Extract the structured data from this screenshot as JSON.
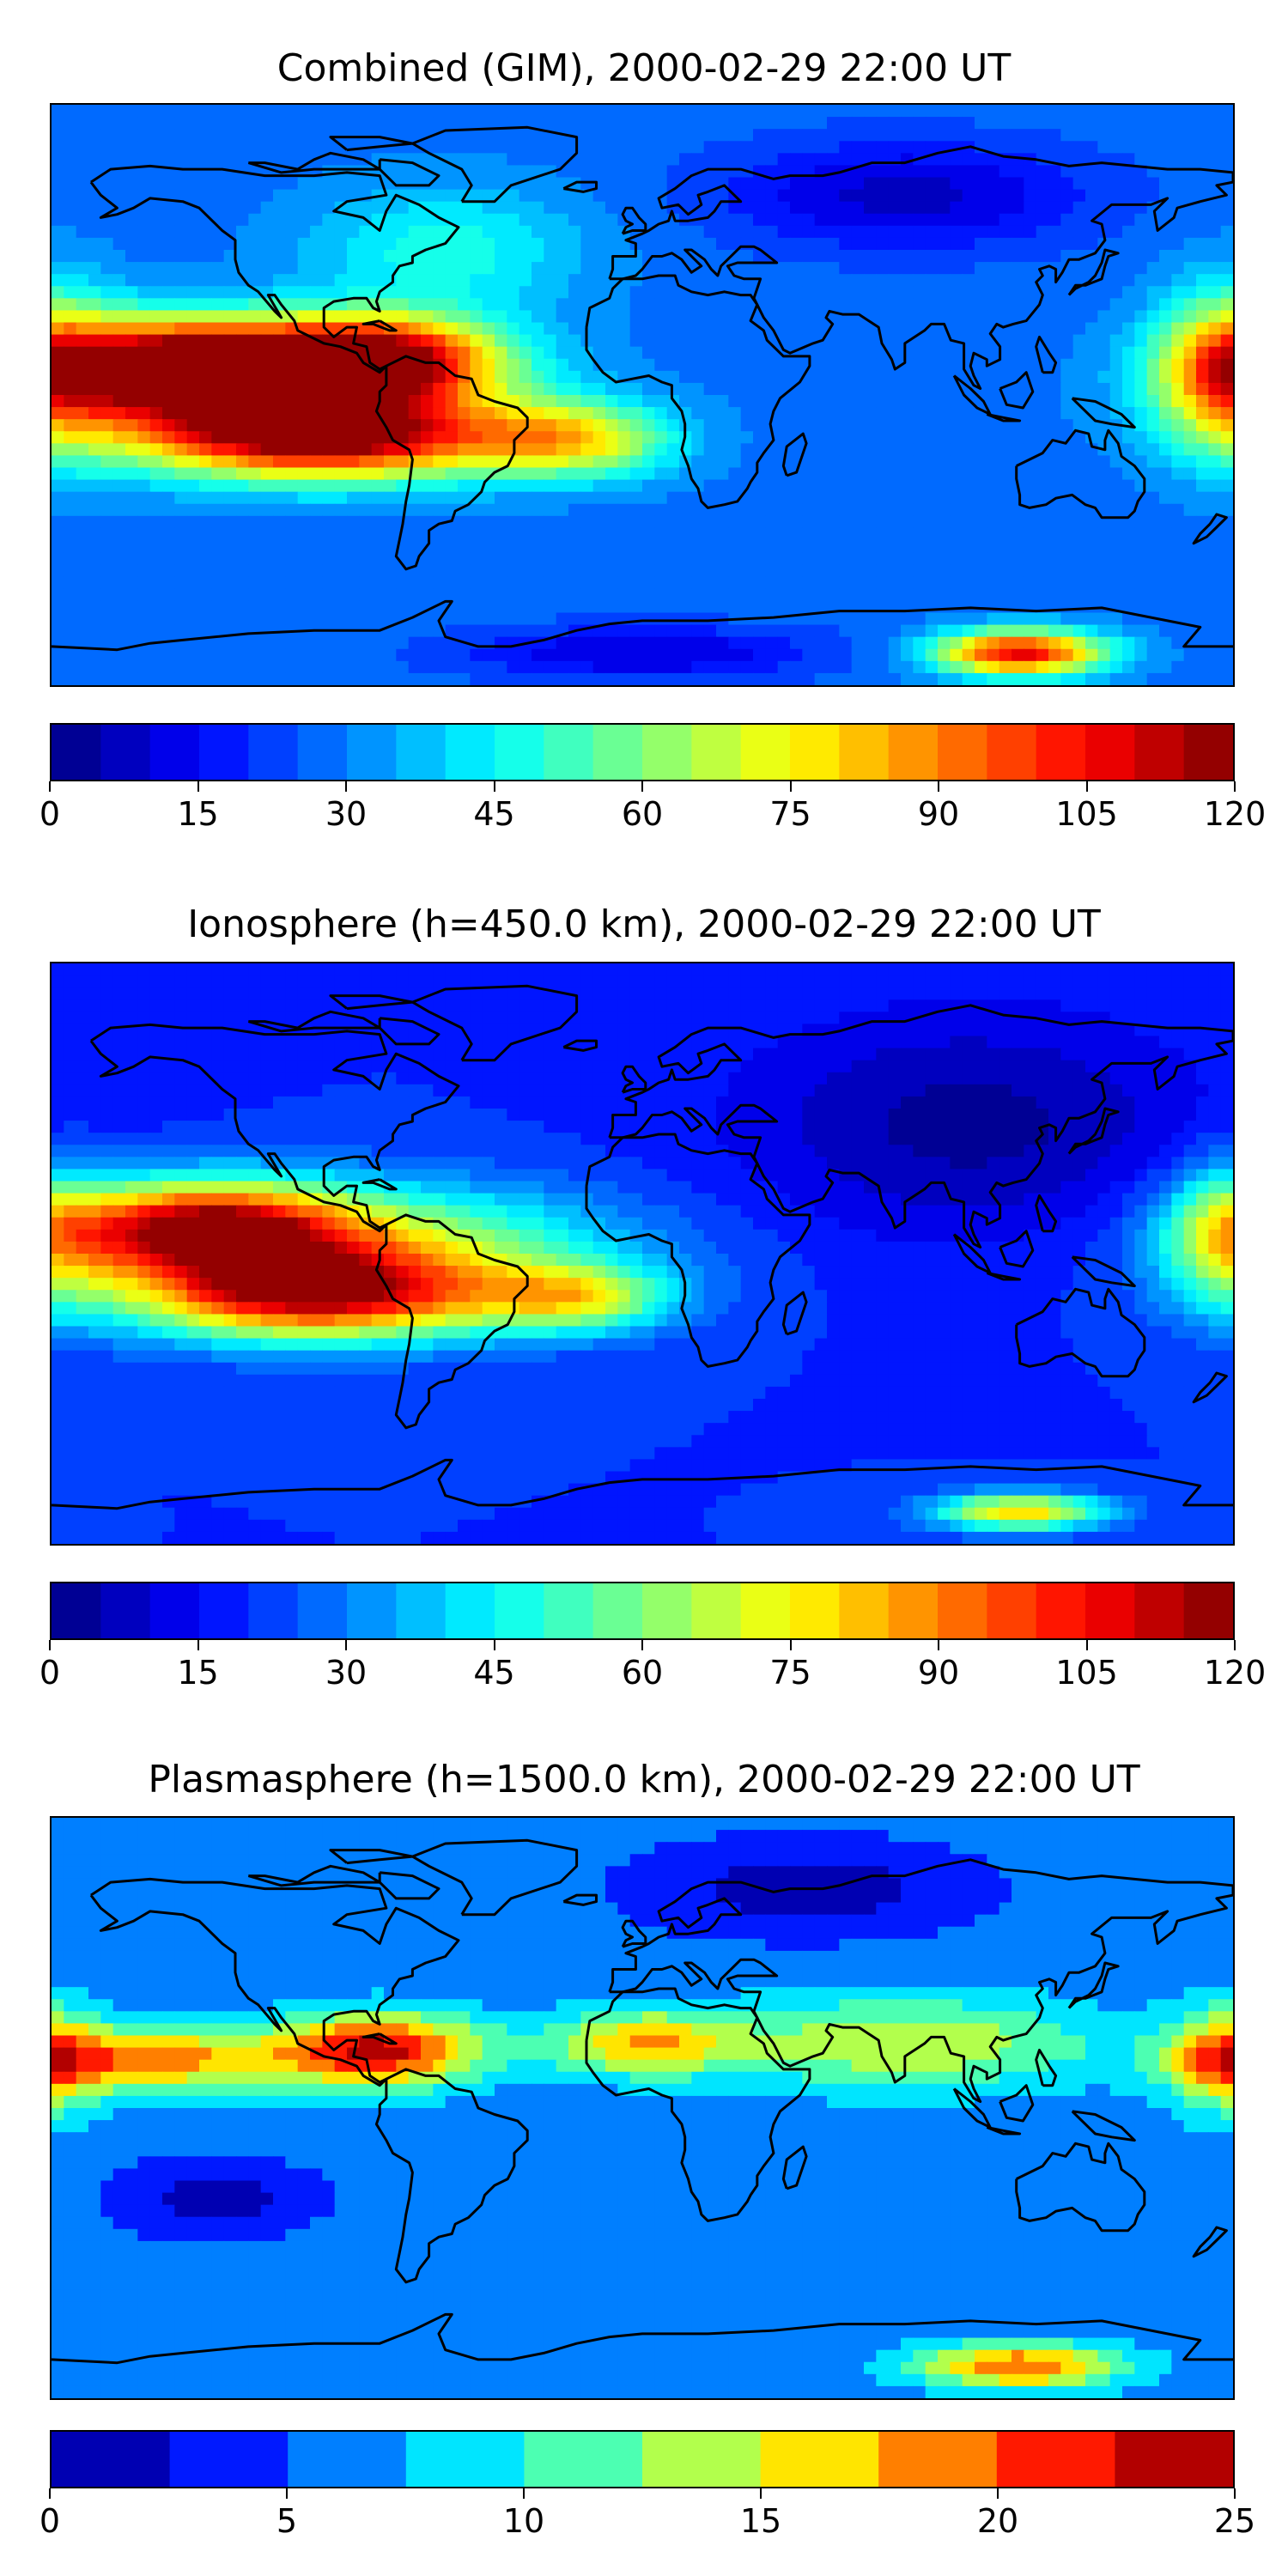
{
  "chart_data": [
    {
      "type": "heatmap",
      "title": "Combined (GIM), 2000-02-29 22:00 UT",
      "colorbar": {
        "min": 0,
        "max": 120,
        "step": 5,
        "ticks": [
          0,
          15,
          30,
          45,
          60,
          75,
          90,
          105,
          120
        ],
        "tick_labels": [
          "0",
          "15",
          "30",
          "45",
          "60",
          "75",
          "90",
          "105",
          "120"
        ]
      },
      "background_level": 28,
      "features": [
        {
          "name": "south-american-crest-west",
          "lon": -140,
          "lat": 10,
          "value": 118,
          "spread_lon": 30,
          "spread_lat": 10
        },
        {
          "name": "south-american-crest-east",
          "lon": -80,
          "lat": 12,
          "value": 108,
          "spread_lon": 25,
          "spread_lat": 9
        },
        {
          "name": "southern-crest",
          "lon": -95,
          "lat": -14,
          "value": 98,
          "spread_lon": 40,
          "spread_lat": 9
        },
        {
          "name": "equatorial-gap",
          "lon": -110,
          "lat": -2,
          "value": 85,
          "spread_lon": 45,
          "spread_lat": 12
        },
        {
          "name": "atlantic-band",
          "lon": -20,
          "lat": -14,
          "value": 70,
          "spread_lon": 20,
          "spread_lat": 8
        },
        {
          "name": "east-pacific-high",
          "lon": 178,
          "lat": 8,
          "value": 75,
          "spread_lon": 15,
          "spread_lat": 18
        },
        {
          "name": "north-atlantic",
          "lon": -60,
          "lat": 45,
          "value": 48,
          "spread_lon": 30,
          "spread_lat": 14
        },
        {
          "name": "siberia-low",
          "lon": 80,
          "lat": 62,
          "value": 8,
          "spread_lon": 40,
          "spread_lat": 12
        },
        {
          "name": "antarctic-high",
          "lon": 115,
          "lat": -80,
          "value": 108,
          "spread_lon": 18,
          "spread_lat": 5
        },
        {
          "name": "antarctic-low",
          "lon": 0,
          "lat": -80,
          "value": 10,
          "spread_lon": 40,
          "spread_lat": 6
        }
      ]
    },
    {
      "type": "heatmap",
      "title": "Ionosphere  (h=450.0 km), 2000-02-29 22:00 UT",
      "colorbar": {
        "min": 0,
        "max": 120,
        "step": 5,
        "ticks": [
          0,
          15,
          30,
          45,
          60,
          75,
          90,
          105,
          120
        ],
        "tick_labels": [
          "0",
          "15",
          "30",
          "45",
          "60",
          "75",
          "90",
          "105",
          "120"
        ]
      },
      "background_level": 20,
      "features": [
        {
          "name": "south-american-crest",
          "lon": -135,
          "lat": 8,
          "value": 100,
          "spread_lon": 30,
          "spread_lat": 10
        },
        {
          "name": "southern-crest",
          "lon": -100,
          "lat": -14,
          "value": 88,
          "spread_lon": 38,
          "spread_lat": 9
        },
        {
          "name": "equatorial-band",
          "lon": -90,
          "lat": 0,
          "value": 75,
          "spread_lon": 55,
          "spread_lat": 14
        },
        {
          "name": "atlantic-band",
          "lon": -20,
          "lat": -14,
          "value": 62,
          "spread_lon": 20,
          "spread_lat": 7
        },
        {
          "name": "east-pacific-high",
          "lon": 178,
          "lat": 6,
          "value": 55,
          "spread_lon": 14,
          "spread_lat": 16
        },
        {
          "name": "asia-low",
          "lon": 100,
          "lat": 40,
          "value": 3,
          "spread_lon": 50,
          "spread_lat": 25
        },
        {
          "name": "antarctic-high",
          "lon": 115,
          "lat": -80,
          "value": 80,
          "spread_lon": 18,
          "spread_lat": 4
        }
      ]
    },
    {
      "type": "heatmap",
      "title": "Plasmasphere (h=1500.0 km), 2000-02-29 22:00 UT",
      "colorbar": {
        "min": 0,
        "max": 25,
        "step": 2.5,
        "ticks": [
          0,
          5,
          10,
          15,
          20,
          25
        ],
        "tick_labels": [
          "0",
          "5",
          "10",
          "15",
          "20",
          "25"
        ]
      },
      "background_level": 6,
      "features": [
        {
          "name": "caribbean-max",
          "lon": -80,
          "lat": 18,
          "value": 23,
          "spread_lon": 22,
          "spread_lat": 8
        },
        {
          "name": "pacific-band",
          "lon": -150,
          "lat": 15,
          "value": 19,
          "spread_lon": 30,
          "spread_lat": 7
        },
        {
          "name": "north-africa",
          "lon": 0,
          "lat": 20,
          "value": 17,
          "spread_lon": 20,
          "spread_lat": 7
        },
        {
          "name": "asia-band",
          "lon": 80,
          "lat": 20,
          "value": 15,
          "spread_lon": 40,
          "spread_lat": 10
        },
        {
          "name": "east-pacific",
          "lon": 178,
          "lat": 15,
          "value": 16,
          "spread_lon": 12,
          "spread_lat": 12
        },
        {
          "name": "siberia-low",
          "lon": 50,
          "lat": 68,
          "value": 1,
          "spread_lon": 35,
          "spread_lat": 10
        },
        {
          "name": "south-pacific-low",
          "lon": -130,
          "lat": -28,
          "value": 1,
          "spread_lon": 20,
          "spread_lat": 8
        },
        {
          "name": "antarctic-high",
          "lon": 115,
          "lat": -80,
          "value": 20,
          "spread_lon": 22,
          "spread_lat": 5
        }
      ]
    }
  ],
  "colors": {
    "jet_stops": [
      "#00007f",
      "#0000ff",
      "#007fff",
      "#00ffff",
      "#7fff7f",
      "#ffff00",
      "#ff7f00",
      "#ff0000",
      "#7f0000"
    ],
    "coastline": "#000000"
  },
  "map": {
    "projection": "plate-carree",
    "lon_range": [
      -180,
      180
    ],
    "lat_range": [
      -90,
      90
    ],
    "coastlines": true
  }
}
